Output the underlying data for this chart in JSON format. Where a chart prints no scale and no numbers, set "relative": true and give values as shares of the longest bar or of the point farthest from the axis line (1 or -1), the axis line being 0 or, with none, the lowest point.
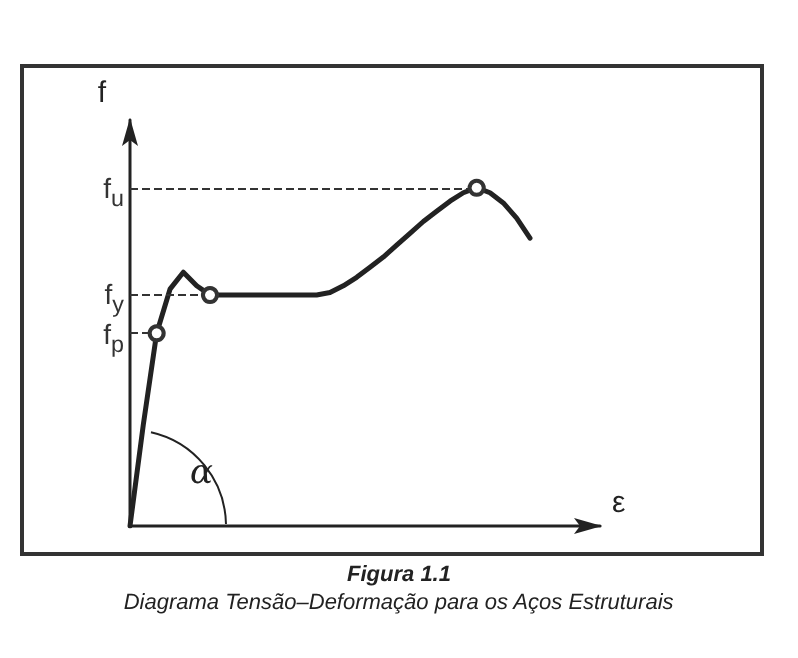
{
  "chart_data": {
    "type": "line",
    "relative": true,
    "xlabel": "ε",
    "ylabel": "f",
    "grid": false,
    "marker": "none",
    "line_style": "solid",
    "categories": [
      null,
      null,
      null,
      null,
      null,
      null,
      null,
      null,
      null,
      null,
      null,
      null,
      null,
      null,
      null,
      null,
      null,
      null,
      null,
      null,
      null,
      null,
      null,
      null,
      null,
      null,
      null,
      null,
      null,
      null,
      null
    ],
    "series": [
      {
        "color": "#222222",
        "values": [
          0,
          0.3,
          0.57,
          0.7,
          0.75,
          0.71,
          0.683,
          0.683,
          0.683,
          0.683,
          0.683,
          0.683,
          0.683,
          0.683,
          0.683,
          0.69,
          0.71,
          0.735,
          0.765,
          0.795,
          0.83,
          0.865,
          0.9,
          0.93,
          0.96,
          0.985,
          1,
          0.985,
          0.955,
          0.91,
          0.851
        ]
      }
    ],
    "ref_lines": [
      {
        "axis": "y",
        "value": 1,
        "label": "f$_{u}$",
        "color": "#333333",
        "line_style": "dashed"
      },
      {
        "axis": "y",
        "value": 0.683,
        "label": "f$_{y}$",
        "color": "#333333",
        "line_style": "dashed"
      },
      {
        "axis": "y",
        "value": 0.57,
        "label": "f$_{p}$",
        "color": "#333333",
        "line_style": "dashed"
      }
    ],
    "annotations": [
      "α",
      "Figura 1.1",
      "Diagrama Tensão–Deformação para os Aços Estruturais"
    ]
  }
}
